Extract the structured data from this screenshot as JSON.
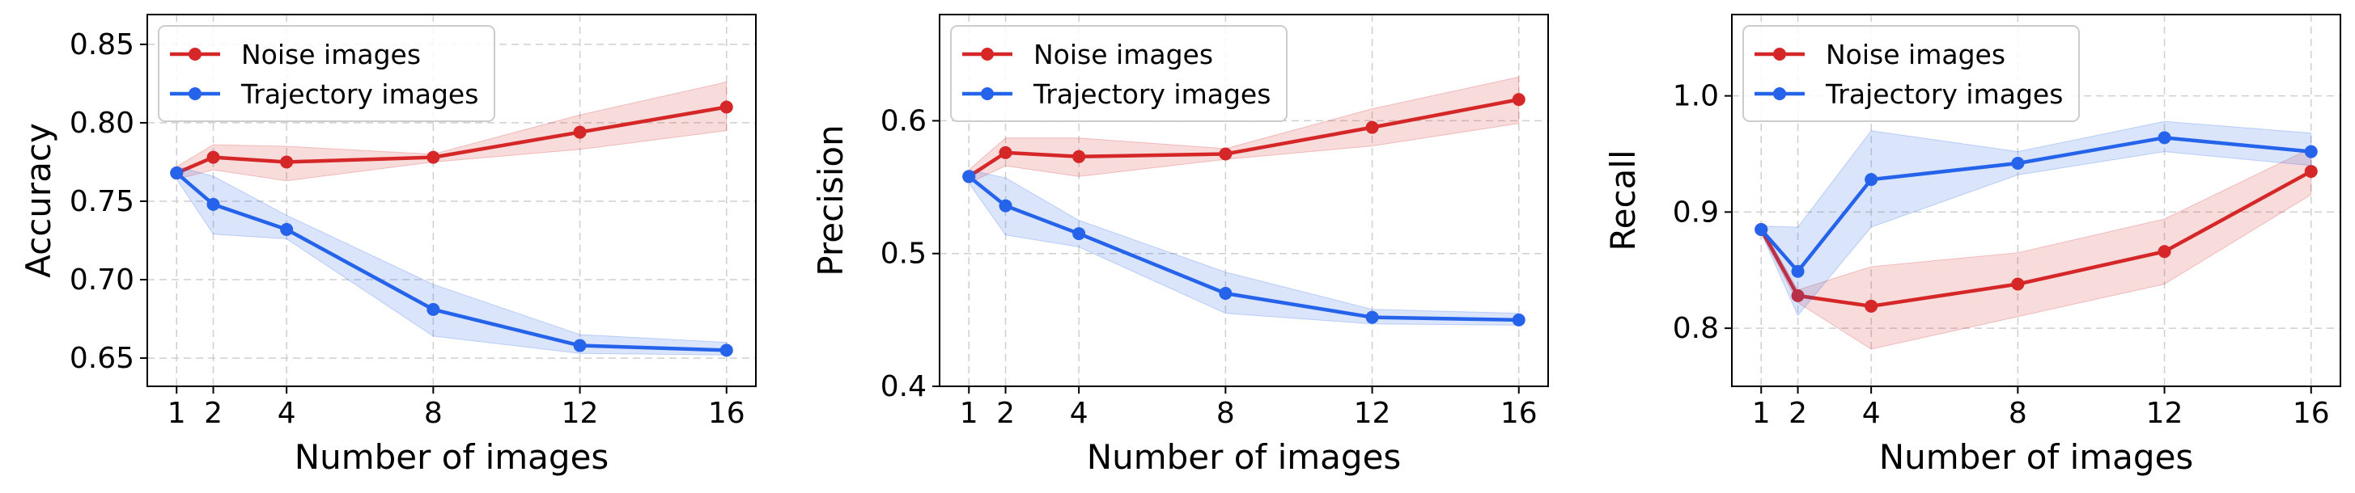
{
  "colors": {
    "noise": "#d62728",
    "trajectory": "#2563eb",
    "grid": "#cfcfcf"
  },
  "chart_data": [
    {
      "type": "line",
      "x": [
        1,
        2,
        4,
        8,
        12,
        16
      ],
      "xticks": [
        "1",
        "2",
        "4",
        "8",
        "12",
        "16"
      ],
      "xlabel": "Number of images",
      "ylabel": "Accuracy",
      "xlim": [
        0.2,
        16.8
      ],
      "ylim": [
        0.632,
        0.869
      ],
      "yticks": [
        "0.65",
        "0.70",
        "0.75",
        "0.80",
        "0.85"
      ],
      "grid": true,
      "legend": "top-left",
      "series": [
        {
          "name": "Noise images",
          "color_key": "noise",
          "values": [
            0.768,
            0.778,
            0.775,
            0.778,
            0.794,
            0.81
          ],
          "lower": [
            0.764,
            0.77,
            0.763,
            0.775,
            0.783,
            0.795
          ],
          "upper": [
            0.772,
            0.786,
            0.785,
            0.78,
            0.805,
            0.826
          ]
        },
        {
          "name": "Trajectory images",
          "color_key": "trajectory",
          "values": [
            0.768,
            0.748,
            0.732,
            0.681,
            0.658,
            0.655
          ],
          "lower": [
            0.764,
            0.729,
            0.726,
            0.664,
            0.653,
            0.652
          ],
          "upper": [
            0.772,
            0.766,
            0.741,
            0.697,
            0.665,
            0.66
          ]
        }
      ]
    },
    {
      "type": "line",
      "x": [
        1,
        2,
        4,
        8,
        12,
        16
      ],
      "xticks": [
        "1",
        "2",
        "4",
        "8",
        "12",
        "16"
      ],
      "xlabel": "Number of images",
      "ylabel": "Precision",
      "xlim": [
        0.2,
        16.8
      ],
      "ylim": [
        0.4,
        0.68
      ],
      "yticks": [
        "0.4",
        "0.5",
        "0.6"
      ],
      "grid": true,
      "legend": "top-left",
      "series": [
        {
          "name": "Noise images",
          "color_key": "noise",
          "values": [
            0.558,
            0.576,
            0.573,
            0.575,
            0.595,
            0.616
          ],
          "lower": [
            0.553,
            0.566,
            0.558,
            0.571,
            0.581,
            0.598
          ],
          "upper": [
            0.563,
            0.587,
            0.587,
            0.579,
            0.609,
            0.633
          ]
        },
        {
          "name": "Trajectory images",
          "color_key": "trajectory",
          "values": [
            0.558,
            0.536,
            0.515,
            0.47,
            0.452,
            0.45
          ],
          "lower": [
            0.553,
            0.514,
            0.505,
            0.455,
            0.447,
            0.446
          ],
          "upper": [
            0.563,
            0.557,
            0.525,
            0.486,
            0.458,
            0.455
          ]
        }
      ]
    },
    {
      "type": "line",
      "x": [
        1,
        2,
        4,
        8,
        12,
        16
      ],
      "xticks": [
        "1",
        "2",
        "4",
        "8",
        "12",
        "16"
      ],
      "xlabel": "Number of images",
      "ylabel": "Recall",
      "xlim": [
        0.2,
        16.8
      ],
      "ylim": [
        0.75,
        1.07
      ],
      "yticks": [
        "0.8",
        "0.9",
        "1.0"
      ],
      "grid": true,
      "legend": "top-left",
      "series": [
        {
          "name": "Noise images",
          "color_key": "noise",
          "values": [
            0.885,
            0.828,
            0.819,
            0.838,
            0.866,
            0.935
          ],
          "lower": [
            0.882,
            0.822,
            0.782,
            0.81,
            0.838,
            0.915
          ],
          "upper": [
            0.888,
            0.833,
            0.853,
            0.865,
            0.894,
            0.955
          ]
        },
        {
          "name": "Trajectory images",
          "color_key": "trajectory",
          "values": [
            0.885,
            0.849,
            0.928,
            0.942,
            0.964,
            0.952
          ],
          "lower": [
            0.882,
            0.811,
            0.887,
            0.932,
            0.952,
            0.94
          ],
          "upper": [
            0.888,
            0.887,
            0.97,
            0.952,
            0.978,
            0.968
          ]
        }
      ]
    }
  ]
}
